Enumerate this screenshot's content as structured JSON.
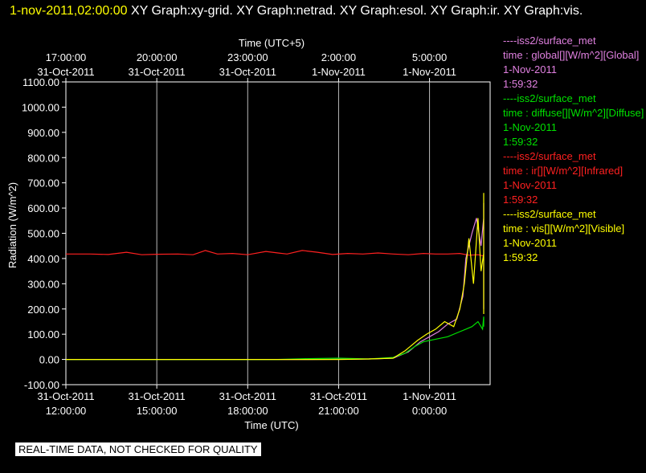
{
  "header": {
    "timestamp": "1-nov-2011,02:00:00",
    "graphs": "XY Graph:xy-grid.  XY Graph:netrad.  XY Graph:esol.  XY Graph:ir.  XY Graph:vis."
  },
  "legend": [
    {
      "source": "----iss2/surface_met",
      "var": "time : global[][W/m^2][Global]",
      "date": "1-Nov-2011",
      "time": "1:59:32",
      "color": "#e080e0"
    },
    {
      "source": "----iss2/surface_met",
      "var": "time : diffuse[][W/m^2][Diffuse]",
      "date": "1-Nov-2011",
      "time": "1:59:32",
      "color": "#00e000"
    },
    {
      "source": "----iss2/surface_met",
      "var": "time : ir[][W/m^2][Infrared]",
      "date": "1-Nov-2011",
      "time": "1:59:32",
      "color": "#ff2020"
    },
    {
      "source": "----iss2/surface_met",
      "var": "time : vis[][W/m^2][Visible]",
      "date": "1-Nov-2011",
      "time": "1:59:32",
      "color": "#ffff00"
    }
  ],
  "footer": "REAL-TIME DATA, NOT CHECKED FOR QUALITY",
  "chart_data": {
    "type": "line",
    "ylabel": "Radiation (W/m^2)",
    "xlabel": "Time (UTC)",
    "x2label": "Time (UTC+5)",
    "ylim": [
      -100,
      1100
    ],
    "yticks": [
      "1100.00",
      "1000.00",
      "900.00",
      "800.00",
      "700.00",
      "600.00",
      "500.00",
      "400.00",
      "300.00",
      "200.00",
      "100.00",
      "0.00",
      "-100.00"
    ],
    "xticks_bottom": [
      {
        "line1": "31-Oct-2011",
        "line2": "12:00:00"
      },
      {
        "line1": "31-Oct-2011",
        "line2": "15:00:00"
      },
      {
        "line1": "31-Oct-2011",
        "line2": "18:00:00"
      },
      {
        "line1": "31-Oct-2011",
        "line2": "21:00:00"
      },
      {
        "line1": "1-Nov-2011",
        "line2": "0:00:00"
      }
    ],
    "xticks_top": [
      {
        "line1": "17:00:00",
        "line2": "31-Oct-2011"
      },
      {
        "line1": "20:00:00",
        "line2": "31-Oct-2011"
      },
      {
        "line1": "23:00:00",
        "line2": "31-Oct-2011"
      },
      {
        "line1": "2:00:00",
        "line2": "1-Nov-2011"
      },
      {
        "line1": "5:00:00",
        "line2": "1-Nov-2011"
      }
    ],
    "xlim_hours_utc": [
      12,
      26
    ],
    "grid": "vertical",
    "series": [
      {
        "name": "ir",
        "color": "#ff2020",
        "x": [
          12,
          12.8,
          13.4,
          14,
          14.5,
          15,
          15.7,
          16.2,
          16.6,
          17,
          17.5,
          18,
          18.6,
          19,
          19.3,
          19.8,
          20.3,
          20.8,
          21.3,
          21.8,
          22.3,
          22.8,
          23.3,
          23.8,
          24.2,
          24.6,
          25,
          25.3,
          25.6,
          25.9
        ],
        "y": [
          418,
          418,
          416,
          425,
          415,
          417,
          418,
          415,
          432,
          418,
          420,
          415,
          428,
          422,
          418,
          432,
          425,
          416,
          420,
          418,
          422,
          418,
          415,
          420,
          418,
          418,
          420,
          413,
          415,
          410
        ]
      },
      {
        "name": "global",
        "color": "#e080e0",
        "x": [
          12,
          20,
          22,
          22.8,
          23.3,
          23.7,
          24,
          24.3,
          24.6,
          24.9,
          25.1,
          25.2,
          25.4,
          25.55,
          25.7,
          25.8,
          25.9,
          25.95,
          26
        ],
        "y": [
          0,
          0,
          2,
          5,
          30,
          70,
          90,
          110,
          140,
          160,
          250,
          400,
          500,
          560,
          450,
          560,
          200,
          620,
          600
        ]
      },
      {
        "name": "diffuse",
        "color": "#00e000",
        "x": [
          12,
          19,
          20,
          21,
          22,
          22.8,
          23.2,
          23.5,
          23.8,
          24.2,
          24.6,
          25,
          25.2,
          25.4,
          25.6,
          25.75,
          25.85,
          25.9,
          26
        ],
        "y": [
          0,
          0,
          3,
          5,
          2,
          8,
          25,
          50,
          70,
          80,
          90,
          110,
          120,
          130,
          150,
          120,
          170,
          130,
          140
        ]
      },
      {
        "name": "vis",
        "color": "#ffff00",
        "x": [
          12,
          21,
          22,
          22.8,
          23.2,
          23.6,
          23.9,
          24.2,
          24.5,
          24.8,
          25,
          25.15,
          25.3,
          25.45,
          25.6,
          25.7,
          25.8,
          25.88,
          25.95,
          26
        ],
        "y": [
          0,
          0,
          2,
          5,
          35,
          75,
          100,
          120,
          150,
          130,
          200,
          300,
          480,
          300,
          560,
          350,
          420,
          180,
          660,
          580
        ]
      }
    ]
  }
}
